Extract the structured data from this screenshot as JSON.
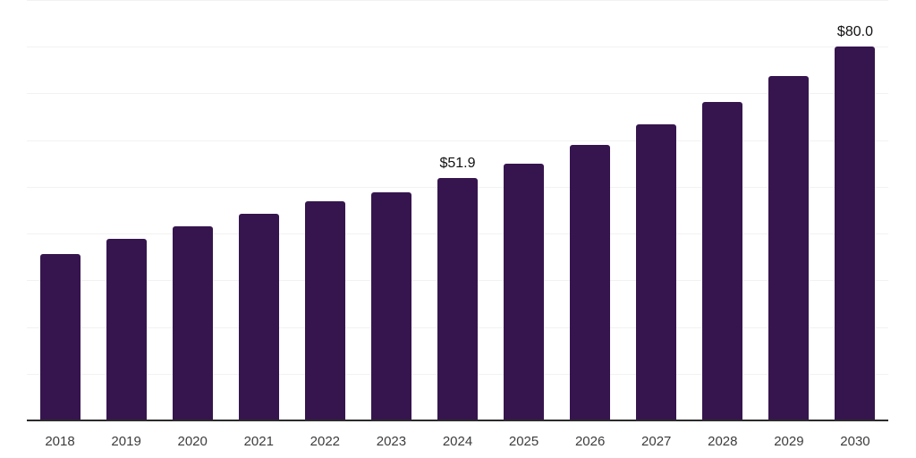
{
  "chart_data": {
    "type": "bar",
    "title": "",
    "xlabel": "",
    "ylabel": "",
    "categories": [
      "2018",
      "2019",
      "2020",
      "2021",
      "2022",
      "2023",
      "2024",
      "2025",
      "2026",
      "2027",
      "2028",
      "2029",
      "2030"
    ],
    "values": [
      35.7,
      38.8,
      41.5,
      44.2,
      46.9,
      48.8,
      51.9,
      55.0,
      59.0,
      63.4,
      68.1,
      73.7,
      80.0
    ],
    "point_labels": [
      "",
      "",
      "",
      "",
      "",
      "",
      "$51.9",
      "",
      "",
      "",
      "",
      "",
      "$80.0"
    ],
    "ylim": [
      0,
      90
    ],
    "grid_step": 10,
    "grid": "horizontal-only",
    "y_axis_tick_labels_visible": false,
    "legend_position": "none"
  },
  "colors": {
    "background": "#ffffff",
    "bar": "#36154E",
    "gridline": "#f2f2f3",
    "axis_line": "#2b2b2b",
    "category_label": "#3d3d3d",
    "data_label": "#111111"
  }
}
